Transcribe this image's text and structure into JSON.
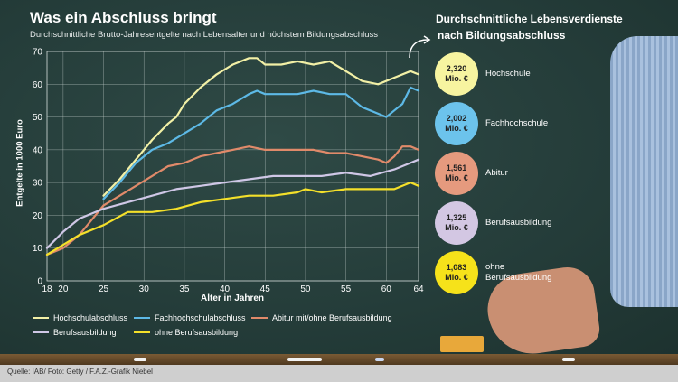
{
  "header": {
    "title": "Was ein Abschluss bringt",
    "subtitle": "Durchschnittliche Brutto-Jahresentgelte nach Lebensalter und höchstem Bildungsabschluss"
  },
  "right_panel": {
    "title_line1": "Durchschnittliche Lebensverdienste",
    "title_line2": "nach Bildungsabschluss",
    "items": [
      {
        "value_line1": "2,320",
        "value_line2": "Mio. €",
        "label_line1": "Hochschule",
        "label_line2": "",
        "color": "#f7f4a0"
      },
      {
        "value_line1": "2,002",
        "value_line2": "Mio. €",
        "label_line1": "Fachhochschule",
        "label_line2": "",
        "color": "#6cc3ec"
      },
      {
        "value_line1": "1,561",
        "value_line2": "Mio. €",
        "label_line1": "Abitur",
        "label_line2": "",
        "color": "#e59a7e"
      },
      {
        "value_line1": "1,325",
        "value_line2": "Mio. €",
        "label_line1": "Berufsausbildung",
        "label_line2": "",
        "color": "#d3c7e3"
      },
      {
        "value_line1": "1,083",
        "value_line2": "Mio. €",
        "label_line1": "ohne",
        "label_line2": "Berufsausbildung",
        "color": "#f6e21a"
      }
    ]
  },
  "source": "Quelle: IAB/ Foto: Getty / F.A.Z.-Grafik Niebel",
  "chart_data": {
    "type": "line",
    "title": "Was ein Abschluss bringt",
    "subtitle": "Durchschnittliche Brutto-Jahresentgelte nach Lebensalter und höchstem Bildungsabschluss",
    "xlabel": "Alter in Jahren",
    "ylabel": "Entgelte in 1000 Euro",
    "xlim": [
      18,
      64
    ],
    "ylim": [
      0,
      70
    ],
    "xticks": [
      18,
      20,
      25,
      30,
      35,
      40,
      45,
      50,
      55,
      60,
      64
    ],
    "yticks": [
      0,
      10,
      20,
      30,
      40,
      50,
      60,
      70
    ],
    "grid": true,
    "legend_position": "bottom",
    "series": [
      {
        "name": "Hochschulabschluss",
        "color": "#f2f0a6",
        "x": [
          25,
          27,
          29,
          31,
          33,
          34,
          35,
          37,
          39,
          41,
          43,
          44,
          45,
          47,
          49,
          51,
          53,
          55,
          57,
          59,
          61,
          63,
          64
        ],
        "y": [
          26,
          31,
          37,
          43,
          48,
          50,
          54,
          59,
          63,
          66,
          68,
          68,
          66,
          66,
          67,
          66,
          67,
          64,
          61,
          60,
          62,
          64,
          63
        ]
      },
      {
        "name": "Fachhochschulabschluss",
        "color": "#5db9e6",
        "x": [
          25,
          27,
          29,
          31,
          33,
          35,
          37,
          39,
          41,
          43,
          44,
          45,
          47,
          49,
          51,
          53,
          55,
          57,
          59,
          60,
          61,
          62,
          63,
          64
        ],
        "y": [
          25,
          30,
          36,
          40,
          42,
          45,
          48,
          52,
          54,
          57,
          58,
          57,
          57,
          57,
          58,
          57,
          57,
          53,
          51,
          50,
          52,
          54,
          59,
          58
        ]
      },
      {
        "name": "Abitur mit/ohne Berufsausbildung",
        "color": "#e08a6a",
        "x": [
          18,
          20,
          22,
          25,
          27,
          29,
          31,
          33,
          35,
          37,
          39,
          41,
          43,
          45,
          47,
          49,
          51,
          53,
          55,
          57,
          59,
          60,
          61,
          62,
          63,
          64
        ],
        "y": [
          8,
          10,
          14,
          23,
          26,
          29,
          32,
          35,
          36,
          38,
          39,
          40,
          41,
          40,
          40,
          40,
          40,
          39,
          39,
          38,
          37,
          36,
          38,
          41,
          41,
          40
        ]
      },
      {
        "name": "Berufsausbildung",
        "color": "#cfc7e6",
        "x": [
          18,
          20,
          22,
          25,
          28,
          31,
          34,
          37,
          40,
          43,
          46,
          49,
          52,
          55,
          58,
          61,
          63,
          64
        ],
        "y": [
          10,
          15,
          19,
          22,
          24,
          26,
          28,
          29,
          30,
          31,
          32,
          32,
          32,
          33,
          32,
          34,
          36,
          37
        ]
      },
      {
        "name": "ohne Berufsausbildung",
        "color": "#f4e02a",
        "x": [
          18,
          20,
          22,
          25,
          28,
          31,
          34,
          37,
          40,
          43,
          46,
          49,
          50,
          52,
          55,
          58,
          61,
          63,
          64
        ],
        "y": [
          8,
          11,
          14,
          17,
          21,
          21,
          22,
          24,
          25,
          26,
          26,
          27,
          28,
          27,
          28,
          28,
          28,
          30,
          29
        ]
      }
    ]
  }
}
